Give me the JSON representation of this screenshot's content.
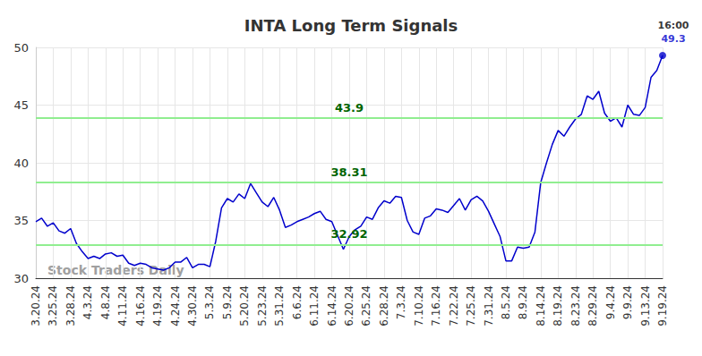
{
  "chart_data": {
    "type": "line",
    "title": "INTA Long Term Signals",
    "categories": [
      "3.20.24",
      null,
      null,
      "3.25.24",
      null,
      null,
      "3.28.24",
      null,
      null,
      "4.3.24",
      null,
      null,
      "4.8.24",
      null,
      null,
      "4.11.24",
      null,
      null,
      "4.16.24",
      null,
      null,
      "4.19.24",
      null,
      null,
      "4.24.24",
      null,
      null,
      "4.30.24",
      null,
      null,
      "5.3.24",
      null,
      null,
      "5.9.24",
      null,
      null,
      "5.20.24",
      null,
      null,
      "5.23.24",
      null,
      null,
      "5.31.24",
      null,
      null,
      "6.6.24",
      null,
      null,
      "6.11.24",
      null,
      null,
      "6.14.24",
      null,
      null,
      "6.20.24",
      null,
      null,
      "6.25.24",
      null,
      null,
      "6.28.24",
      null,
      null,
      "7.3.24",
      null,
      null,
      "7.10.24",
      null,
      null,
      "7.16.24",
      null,
      null,
      "7.22.24",
      null,
      null,
      "7.25.24",
      null,
      null,
      "7.31.24",
      null,
      null,
      "8.5.24",
      null,
      null,
      "8.9.24",
      null,
      null,
      "8.14.24",
      null,
      null,
      "8.19.24",
      null,
      null,
      "8.23.24",
      null,
      null,
      "8.29.24",
      null,
      null,
      "9.4.24",
      null,
      null,
      "9.9.24",
      null,
      null,
      "9.13.24",
      null,
      null,
      "9.19.24"
    ],
    "values": [
      34.9,
      35.2,
      34.5,
      34.8,
      34.1,
      33.9,
      34.3,
      33.0,
      32.3,
      31.7,
      31.9,
      31.7,
      32.1,
      32.2,
      31.9,
      32.0,
      31.3,
      31.1,
      31.3,
      31.2,
      30.9,
      30.8,
      30.7,
      30.9,
      31.4,
      31.4,
      31.8,
      30.9,
      31.2,
      31.2,
      31.0,
      33.2,
      36.1,
      36.9,
      36.6,
      37.3,
      36.9,
      38.2,
      37.4,
      36.6,
      36.2,
      37.0,
      35.9,
      34.4,
      34.6,
      34.9,
      35.1,
      35.3,
      35.6,
      35.8,
      35.1,
      34.9,
      33.7,
      32.5,
      33.6,
      34.2,
      34.5,
      35.3,
      35.1,
      36.1,
      36.7,
      36.5,
      37.1,
      37.0,
      35.0,
      34.0,
      33.8,
      35.2,
      35.4,
      36.0,
      35.9,
      35.7,
      36.3,
      36.9,
      35.9,
      36.8,
      37.1,
      36.7,
      35.8,
      34.7,
      33.6,
      31.5,
      31.5,
      32.7,
      32.6,
      32.7,
      34.0,
      38.3,
      40.0,
      41.6,
      42.8,
      42.3,
      43.1,
      43.8,
      44.2,
      45.8,
      45.5,
      46.2,
      44.3,
      43.6,
      43.9,
      43.1,
      45.0,
      44.2,
      44.1,
      44.8,
      47.4,
      48.0,
      49.3
    ],
    "color": "#0000cc",
    "ylim": [
      30,
      50
    ],
    "yticks": [
      30,
      35,
      40,
      45,
      50
    ],
    "grid": true,
    "levels": [
      43.9,
      38.31,
      32.92
    ],
    "end_label": {
      "time": "16:00",
      "value": 49.3
    },
    "watermark": "Stock Traders Daily"
  }
}
